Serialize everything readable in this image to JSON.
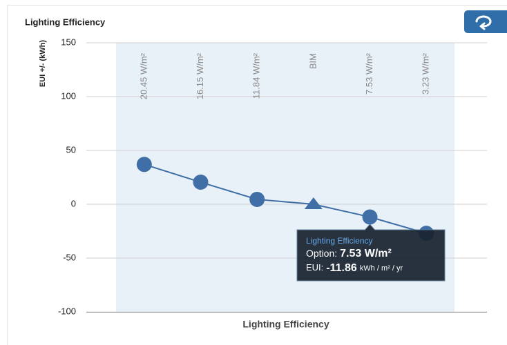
{
  "chart_data": {
    "type": "line",
    "title": "Lighting Efficiency",
    "x_label": "Lighting Efficiency",
    "y_label": "EUI +/- (kWh)",
    "categories": [
      "20.45 W/m²",
      "16.15 W/m²",
      "11.84 W/m²",
      "BIM",
      "7.53 W/m²",
      "3.23 W/m²"
    ],
    "series": [
      {
        "name": "Lighting Efficiency",
        "color": "#3f6fa6",
        "values": [
          37,
          20.5,
          4.5,
          0,
          -11.86,
          -27
        ],
        "markers": [
          "circle",
          "circle",
          "circle",
          "triangle",
          "circle",
          "circle"
        ]
      }
    ],
    "ylim": [
      -100,
      150
    ],
    "yticks": [
      150,
      100,
      50,
      0,
      -50,
      -100
    ],
    "grid": true,
    "tooltip": {
      "point": 4,
      "option_label": "Option:",
      "eui_label": "EUI:",
      "unit": "kWh / m² / yr"
    }
  }
}
